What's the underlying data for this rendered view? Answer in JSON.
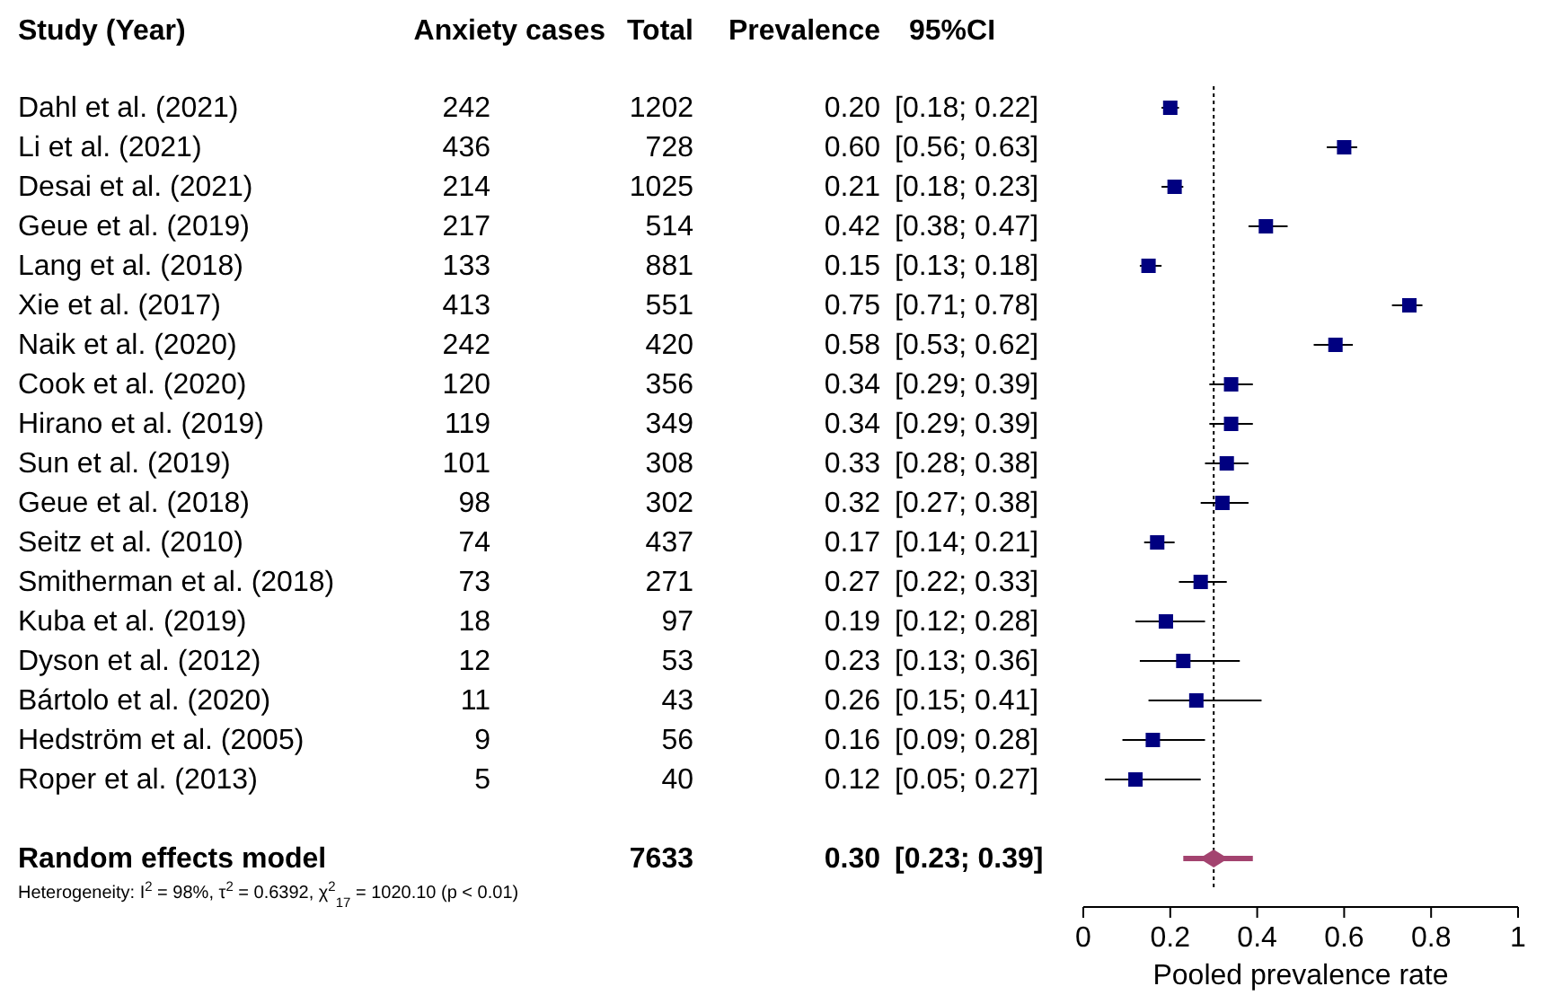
{
  "chart_data": [
    {
      "type": "other",
      "ylabel": "Study (Year)",
      "data_labels": true,
      "categories": [
        "Dahl et al. (2021)",
        "Li et al. (2021)",
        "Desai et al. (2021)",
        "Geue et al. (2019)",
        "Lang et al. (2018)",
        "Xie et al. (2017)",
        "Naik et al. (2020)",
        "Cook et al. (2020)",
        "Hirano et al. (2019)",
        "Sun et al. (2019)",
        "Geue et al. (2018)",
        "Seitz et al. (2010)",
        "Smitherman et al. (2018)",
        "Kuba et al. (2019)",
        "Dyson et al. (2012)",
        "Bártolo et al. (2020)",
        "Hedström et al. (2005)",
        "Roper et al. (2013)",
        null,
        "Random effects model"
      ],
      "series": [
        {
          "name": "Anxiety cases",
          "values": [
            242,
            436,
            214,
            217,
            133,
            413,
            242,
            120,
            119,
            101,
            98,
            74,
            73,
            18,
            12,
            11,
            9,
            5,
            null,
            null
          ]
        },
        {
          "name": "Total",
          "values": [
            1202,
            728,
            1025,
            514,
            881,
            551,
            420,
            356,
            349,
            308,
            302,
            437,
            271,
            97,
            53,
            43,
            56,
            40,
            null,
            7633
          ]
        },
        {
          "name": "Prevalence",
          "values": [
            0.2,
            0.6,
            0.21,
            0.42,
            0.15,
            0.75,
            0.58,
            0.34,
            0.34,
            0.33,
            0.32,
            0.17,
            0.27,
            0.19,
            0.23,
            0.26,
            0.16,
            0.12,
            null,
            0.3
          ],
          "value_labels": [
            "0.20",
            "0.60",
            "0.21",
            "0.42",
            "0.15",
            "0.75",
            "0.58",
            "0.34",
            "0.34",
            "0.33",
            "0.32",
            "0.17",
            "0.27",
            "0.19",
            "0.23",
            "0.26",
            "0.16",
            "0.12",
            null,
            "0.30"
          ]
        },
        {
          "name": "95%CI",
          "values": [
            null,
            null,
            null,
            null,
            null,
            null,
            null,
            null,
            null,
            null,
            null,
            null,
            null,
            null,
            null,
            null,
            null,
            null,
            null,
            null
          ],
          "value_labels": [
            "[0.18; 0.22]",
            "[0.56; 0.63]",
            "[0.18; 0.23]",
            "[0.38; 0.47]",
            "[0.13; 0.18]",
            "[0.71; 0.78]",
            "[0.53; 0.62]",
            "[0.29; 0.39]",
            "[0.29; 0.39]",
            "[0.28; 0.38]",
            "[0.27; 0.38]",
            "[0.14; 0.21]",
            "[0.22; 0.33]",
            "[0.12; 0.28]",
            "[0.13; 0.36]",
            "[0.15; 0.41]",
            "[0.09; 0.28]",
            "[0.05; 0.27]",
            null,
            "[0.23; 0.39]"
          ]
        }
      ],
      "annotations": [
        "Heterogeneity: I$^{2}$ = 98%, τ$^{2}$ = 0.6392, χ$^{2}$$_{17}$ = 1020.10 (p < 0.01)"
      ]
    },
    {
      "type": "scatter",
      "orientation": "horizontal",
      "xlabel": "Pooled prevalence rate",
      "tick_labels": "x",
      "categories": [
        null,
        null,
        null,
        null,
        null,
        null,
        null,
        null,
        null,
        null,
        null,
        null,
        null,
        null,
        null,
        null,
        null,
        null,
        null,
        null
      ],
      "series": [
        {
          "color": "#000080",
          "marker": "square",
          "values": [
            0.2,
            0.6,
            0.21,
            0.42,
            0.15,
            0.75,
            0.58,
            0.34,
            0.34,
            0.33,
            0.32,
            0.17,
            0.27,
            0.19,
            0.23,
            0.26,
            0.16,
            0.12,
            null,
            null
          ],
          "errors": [
            [
              0.18,
              0.22
            ],
            [
              0.56,
              0.63
            ],
            [
              0.18,
              0.23
            ],
            [
              0.38,
              0.47
            ],
            [
              0.13,
              0.18
            ],
            [
              0.71,
              0.78
            ],
            [
              0.53,
              0.62
            ],
            [
              0.29,
              0.39
            ],
            [
              0.29,
              0.39
            ],
            [
              0.28,
              0.38
            ],
            [
              0.27,
              0.38
            ],
            [
              0.14,
              0.21
            ],
            [
              0.22,
              0.33
            ],
            [
              0.12,
              0.28
            ],
            [
              0.13,
              0.36
            ],
            [
              0.15,
              0.41
            ],
            [
              0.09,
              0.28
            ],
            [
              0.05,
              0.27
            ],
            null,
            null
          ]
        },
        {
          "color": "#a3436f",
          "marker": "diamond",
          "values": [
            null,
            null,
            null,
            null,
            null,
            null,
            null,
            null,
            null,
            null,
            null,
            null,
            null,
            null,
            null,
            null,
            null,
            null,
            null,
            0.3
          ],
          "errors": [
            null,
            null,
            null,
            null,
            null,
            null,
            null,
            null,
            null,
            null,
            null,
            null,
            null,
            null,
            null,
            null,
            null,
            null,
            null,
            [
              0.23,
              0.39
            ]
          ]
        }
      ],
      "xlim": [
        0,
        1
      ],
      "xticks": [
        0,
        0.2,
        0.4,
        0.6,
        0.8,
        1
      ],
      "ref_lines": [
        {
          "axis": "x",
          "value": 0.3,
          "line_style": "dotted",
          "color": "#000000"
        }
      ]
    }
  ]
}
